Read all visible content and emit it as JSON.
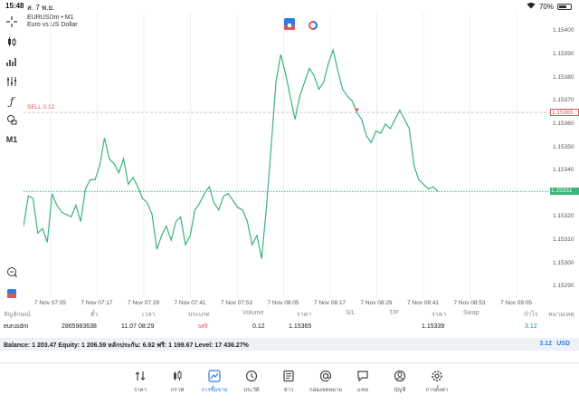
{
  "status": {
    "time": "15:48",
    "date": "ส. 7 พ.ย.",
    "battery": "70%",
    "battery_level": 0.7
  },
  "toolbar": [
    {
      "name": "crosshair-icon"
    },
    {
      "name": "candles-icon"
    },
    {
      "name": "bars-icon"
    },
    {
      "name": "indicators-icon"
    },
    {
      "name": "function-icon"
    },
    {
      "name": "objects-icon"
    }
  ],
  "timeframe": "M1",
  "chart": {
    "symbol": "EURUSDm • M1",
    "description": "Euro vs US Dollar",
    "sell_label": "SELL 0.12",
    "sell_price": "1.15365",
    "bid_price": "1.15331"
  },
  "chart_data": {
    "type": "line",
    "y_ticks": [
      "1.15400",
      "1.15390",
      "1.15380",
      "1.15370",
      "1.15360",
      "1.15350",
      "1.15340",
      "1.15330",
      "1.15320",
      "1.15310",
      "1.15300",
      "1.15290"
    ],
    "x_ticks": [
      "7 Nov 07:05",
      "7 Nov 07:17",
      "7 Nov 07:29",
      "7 Nov 07:41",
      "7 Nov 07:53",
      "7 Nov 08:05",
      "7 Nov 08:17",
      "7 Nov 08:29",
      "7 Nov 08:41",
      "7 Nov 08:53",
      "7 Nov 09:05"
    ],
    "ylim": [
      1.15285,
      1.15408
    ],
    "sell_level": 1.15365,
    "bid_level": 1.15331,
    "values": [
      1.15316,
      1.15329,
      1.15328,
      1.15313,
      1.15315,
      1.15309,
      1.1533,
      1.15325,
      1.15322,
      1.15321,
      1.1532,
      1.15325,
      1.15318,
      1.15332,
      1.15336,
      1.15336,
      1.15342,
      1.15354,
      1.15345,
      1.15343,
      1.15339,
      1.15345,
      1.15334,
      1.15337,
      1.15333,
      1.15328,
      1.15326,
      1.15321,
      1.15306,
      1.15312,
      1.15316,
      1.1531,
      1.15318,
      1.1532,
      1.15308,
      1.15312,
      1.15323,
      1.15326,
      1.1533,
      1.15333,
      1.15326,
      1.15323,
      1.15329,
      1.1533,
      1.15327,
      1.15324,
      1.15323,
      1.15318,
      1.15308,
      1.15312,
      1.15302,
      1.15324,
      1.1535,
      1.15378,
      1.1539,
      1.15382,
      1.15372,
      1.15362,
      1.15372,
      1.15378,
      1.15384,
      1.15381,
      1.15375,
      1.15378,
      1.15386,
      1.15392,
      1.15383,
      1.15375,
      1.15372,
      1.1537,
      1.15365,
      1.15362,
      1.15355,
      1.15352,
      1.15357,
      1.15356,
      1.1536,
      1.15358,
      1.15362,
      1.15366,
      1.15362,
      1.15358,
      1.15342,
      1.15336,
      1.15334,
      1.15332,
      1.15333,
      1.15331
    ]
  },
  "positions": {
    "headers": [
      "สัญลักษณ์",
      "ตั๋ว",
      "เวลา",
      "ประเภท",
      "Volume",
      "ราคา",
      "S/L",
      "T/P",
      "ราคา",
      "Swap",
      "กำไร",
      "หมายเหตุ"
    ],
    "row": {
      "symbol": "eurusdm",
      "ticket": "2865983638",
      "time": "11.07 08:29",
      "type": "sell",
      "volume": "0.12",
      "open_price": "1.15365",
      "price": "1.15339",
      "profit": "3.12"
    },
    "balance": "Balance: 1 203.47 Equity: 1 206.59 หลักประกัน: 6.92 ฟรี: 1 199.67 Level: 17 436.27%",
    "total_profit": "3.12",
    "currency": "USD"
  },
  "nav": [
    {
      "label": "ราคา",
      "icon": "quotes-icon"
    },
    {
      "label": "กราฟ",
      "icon": "chart-icon"
    },
    {
      "label": "การซื้อขาย",
      "icon": "trade-icon"
    },
    {
      "label": "ประวัติ",
      "icon": "history-icon"
    },
    {
      "label": "ข่าว",
      "icon": "news-icon"
    },
    {
      "label": "กล่องจดหมาย",
      "icon": "mail-icon"
    },
    {
      "label": "แชท",
      "icon": "chat-icon"
    },
    {
      "label": "บัญชี",
      "icon": "account-icon"
    },
    {
      "label": "การตั้งค่า",
      "icon": "settings-icon"
    }
  ],
  "colors": {
    "line": "#3bb37a",
    "sell": "#e25555",
    "bid": "#3bb37a",
    "accent": "#2a7de1"
  }
}
